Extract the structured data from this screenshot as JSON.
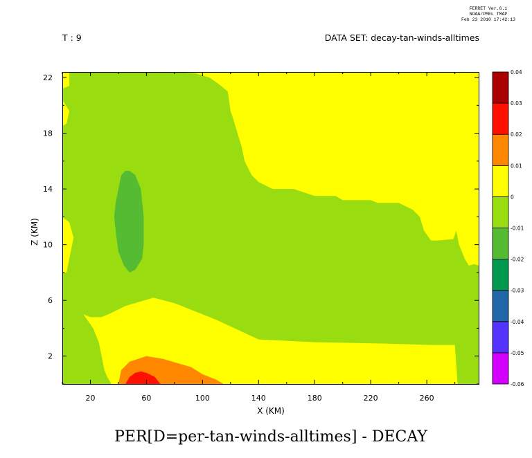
{
  "header": {
    "ferret_line1": "FERRET  Ver.6.1",
    "ferret_line2": "NOAA/PMEL TMAP",
    "ferret_line3": "Feb 23 2010 17:42:13",
    "time_label": "T : 9",
    "dataset_label": "DATA SET: decay-tan-winds-alltimes"
  },
  "footer": {
    "title": "PER[D=per-tan-winds-alltimes] - DECAY"
  },
  "chart_data": {
    "type": "heatmap",
    "title": "PER[D=per-tan-winds-alltimes] - DECAY",
    "xlabel": "X (KM)",
    "ylabel": "Z (KM)",
    "xlim": [
      0,
      297
    ],
    "ylim": [
      0,
      22.4
    ],
    "x_ticks": [
      20,
      60,
      100,
      140,
      180,
      220,
      260
    ],
    "y_ticks": [
      2,
      6,
      10,
      14,
      18,
      22
    ],
    "grid": false,
    "colorbar": {
      "levels": [
        -0.06,
        -0.05,
        -0.04,
        -0.03,
        -0.02,
        -0.01,
        0,
        0.01,
        0.02,
        0.03,
        0.04
      ],
      "tick_labels": [
        "-0.06",
        "-0.05",
        "-0.04",
        "-0.03",
        "-0.02",
        "-0.01",
        "0",
        "0.01",
        "0.02",
        "0.03",
        "0.04"
      ],
      "colors": [
        "#d400ff",
        "#5533ff",
        "#2266aa",
        "#00994d",
        "#55bb33",
        "#99dd11",
        "#ffff00",
        "#ff8800",
        "#ff1100",
        "#aa0000"
      ]
    },
    "regions": [
      {
        "level_range": [
          -0.01,
          0
        ],
        "color": "#99dd11",
        "outline": [
          [
            0,
            0
          ],
          [
            297,
            0
          ],
          [
            297,
            22.4
          ],
          [
            0,
            22.4
          ]
        ]
      },
      {
        "level_range": [
          0,
          0.01
        ],
        "color": "#ffff00",
        "outline": [
          [
            5,
            22.4
          ],
          [
            5,
            21.4
          ],
          [
            0,
            21.2
          ],
          [
            0,
            20.4
          ],
          [
            5,
            19.6
          ],
          [
            3,
            18.7
          ],
          [
            0,
            18.5
          ],
          [
            0,
            22.4
          ]
        ]
      },
      {
        "level_range": [
          0,
          0.01
        ],
        "color": "#ffff00",
        "outline": [
          [
            0,
            12
          ],
          [
            5,
            11.6
          ],
          [
            8,
            10.5
          ],
          [
            5,
            9
          ],
          [
            3,
            8
          ],
          [
            0,
            8
          ]
        ]
      },
      {
        "level_range": [
          0,
          0.01
        ],
        "color": "#ffff00",
        "outline": [
          [
            80,
            22.4
          ],
          [
            297,
            22.4
          ],
          [
            297,
            8.5
          ],
          [
            294,
            8.6
          ],
          [
            290,
            8.5
          ],
          [
            287,
            9
          ],
          [
            283,
            10
          ],
          [
            281,
            11
          ],
          [
            279,
            10.4
          ],
          [
            268,
            10.3
          ],
          [
            263,
            10.3
          ],
          [
            258,
            11
          ],
          [
            255,
            12
          ],
          [
            250,
            12.5
          ],
          [
            240,
            13
          ],
          [
            225,
            13
          ],
          [
            220,
            13.2
          ],
          [
            200,
            13.2
          ],
          [
            195,
            13.5
          ],
          [
            180,
            13.5
          ],
          [
            165,
            14
          ],
          [
            150,
            14
          ],
          [
            140,
            14.5
          ],
          [
            135,
            15
          ],
          [
            130,
            16
          ],
          [
            128,
            17
          ],
          [
            125,
            18
          ],
          [
            122,
            19
          ],
          [
            120,
            19.6
          ],
          [
            118,
            21
          ],
          [
            112,
            21.5
          ],
          [
            105,
            22
          ],
          [
            95,
            22.3
          ]
        ]
      },
      {
        "level_range": [
          0,
          0.01
        ],
        "color": "#ffff00",
        "outline": [
          [
            15,
            5
          ],
          [
            20,
            4.8
          ],
          [
            28,
            4.8
          ],
          [
            35,
            5.1
          ],
          [
            45,
            5.6
          ],
          [
            65,
            6.2
          ],
          [
            80,
            5.8
          ],
          [
            110,
            4.6
          ],
          [
            140,
            3.2
          ],
          [
            180,
            3.0
          ],
          [
            230,
            2.9
          ],
          [
            265,
            2.8
          ],
          [
            280,
            2.8
          ],
          [
            282,
            0
          ],
          [
            45,
            0
          ],
          [
            35,
            0
          ],
          [
            32,
            0.5
          ],
          [
            30,
            1
          ],
          [
            28,
            2
          ],
          [
            26,
            3
          ],
          [
            22,
            4
          ]
        ]
      },
      {
        "level_range": [
          0.01,
          0.02
        ],
        "color": "#ff8800",
        "outline": [
          [
            40,
            0
          ],
          [
            42,
            1
          ],
          [
            48,
            1.6
          ],
          [
            60,
            2
          ],
          [
            72,
            1.8
          ],
          [
            82,
            1.5
          ],
          [
            92,
            1.2
          ],
          [
            100,
            0.7
          ],
          [
            110,
            0.3
          ],
          [
            115,
            0
          ]
        ]
      },
      {
        "level_range": [
          0.02,
          0.03
        ],
        "color": "#ff1100",
        "outline": [
          [
            45,
            0
          ],
          [
            48,
            0.5
          ],
          [
            52,
            0.8
          ],
          [
            56,
            0.9
          ],
          [
            60,
            0.8
          ],
          [
            66,
            0.5
          ],
          [
            70,
            0
          ]
        ]
      },
      {
        "level_range": [
          -0.02,
          -0.01
        ],
        "color": "#55bb33",
        "outline": [
          [
            48,
            15.3
          ],
          [
            52,
            15
          ],
          [
            56,
            14
          ],
          [
            58,
            12
          ],
          [
            58,
            10
          ],
          [
            57,
            9
          ],
          [
            52,
            8.2
          ],
          [
            48,
            8
          ],
          [
            44,
            8.5
          ],
          [
            40,
            9.5
          ],
          [
            38,
            11
          ],
          [
            37,
            12
          ],
          [
            38,
            13
          ],
          [
            42,
            15
          ],
          [
            45,
            15.3
          ]
        ]
      }
    ]
  }
}
